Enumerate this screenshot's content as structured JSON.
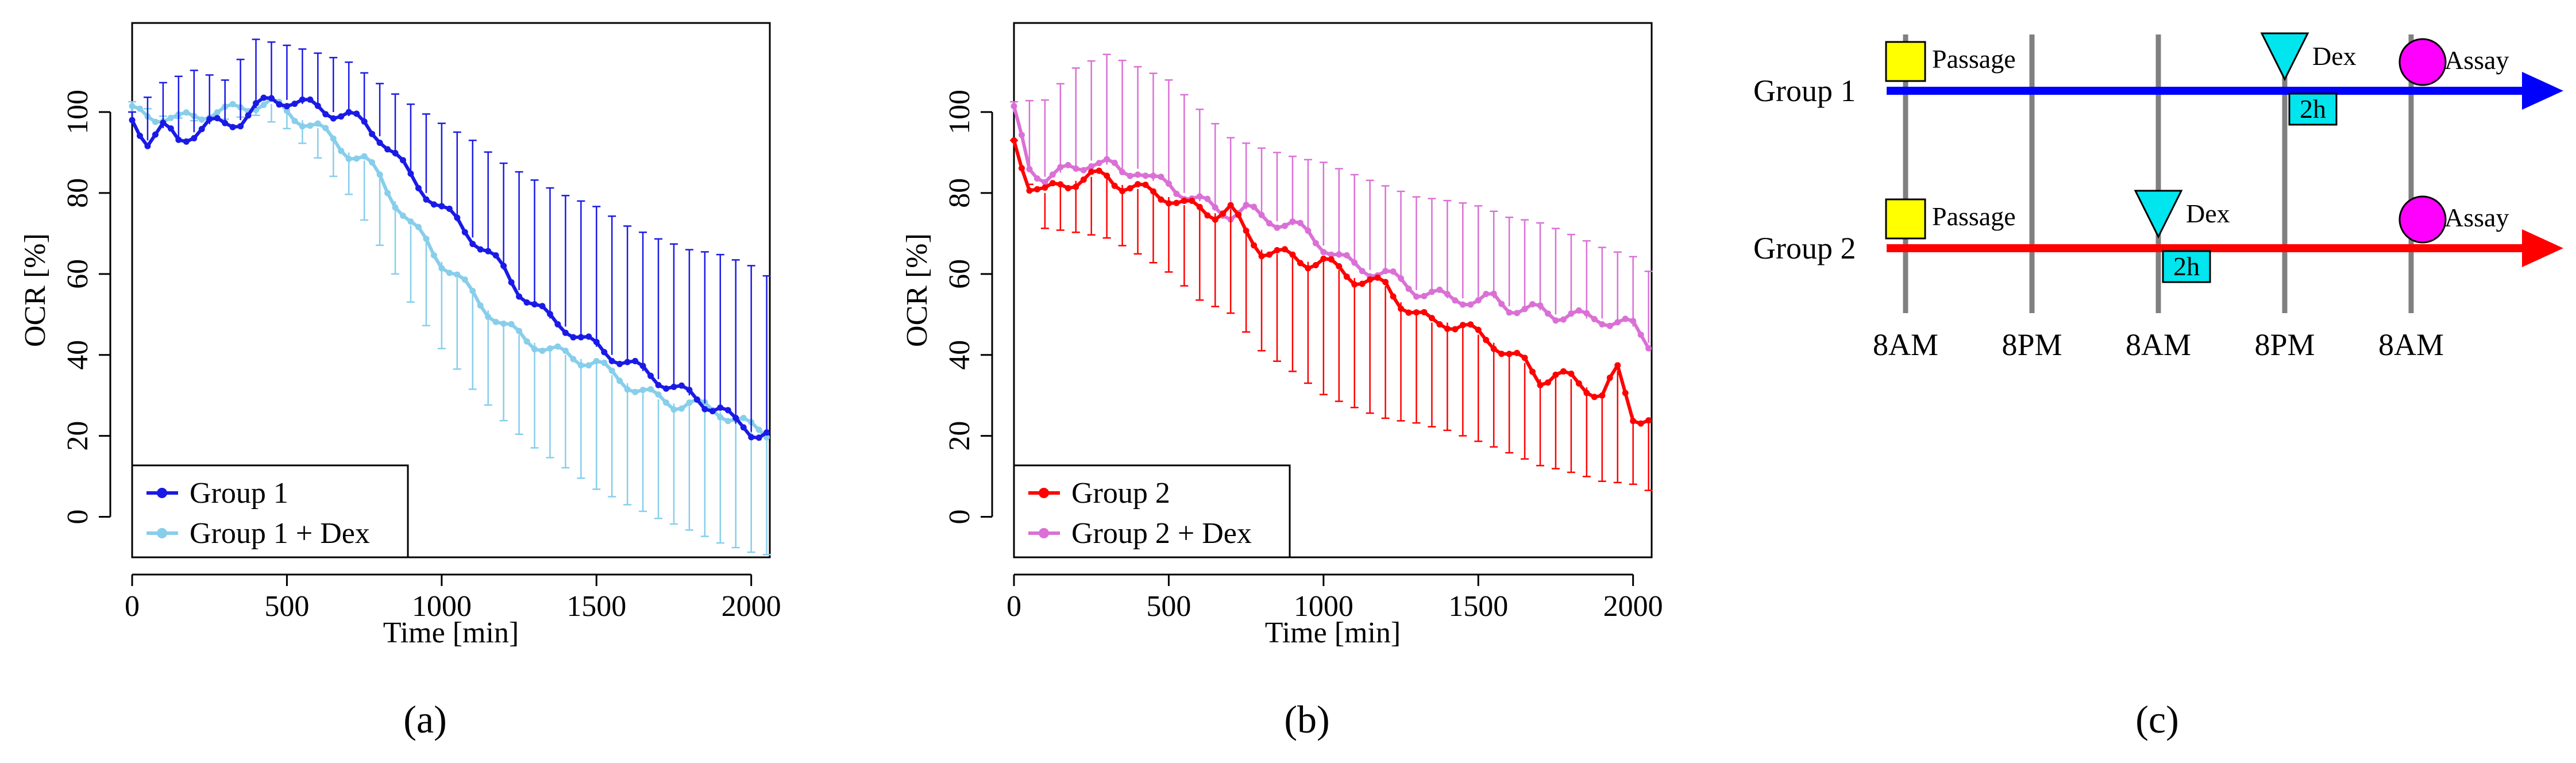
{
  "colors": {
    "group1": "#1a1ae6",
    "group1_dex": "#87ceeb",
    "group2": "#ff0000",
    "group2_dex": "#da70d6",
    "passage": "#ffff00",
    "dex": "#00e5ee",
    "assay": "#ff00ff",
    "timeline_g1": "#0000ff",
    "timeline_g2": "#ff0000",
    "gridline": "#808080"
  },
  "panel_labels": {
    "a": "(a)",
    "b": "(b)",
    "c": "(c)"
  },
  "chart_data": [
    {
      "id": "a",
      "type": "line",
      "title": "",
      "xlabel": "Time [min]",
      "ylabel": "OCR [%]",
      "xlim": [
        0,
        2060
      ],
      "ylim": [
        -10,
        122
      ],
      "xticks": [
        0,
        500,
        1000,
        1500,
        2000
      ],
      "yticks": [
        0,
        20,
        40,
        60,
        80,
        100
      ],
      "legend_position": "bottom-left",
      "series": [
        {
          "name": "Group 1",
          "color_key": "group1",
          "points": [
            [
              0,
              98
            ],
            [
              50,
              93
            ],
            [
              100,
              96
            ],
            [
              150,
              93
            ],
            [
              200,
              95
            ],
            [
              250,
              97
            ],
            [
              300,
              97
            ],
            [
              350,
              98
            ],
            [
              400,
              101
            ],
            [
              450,
              103
            ],
            [
              500,
              103
            ],
            [
              550,
              102
            ],
            [
              600,
              101
            ],
            [
              650,
              100
            ],
            [
              700,
              99
            ],
            [
              750,
              97
            ],
            [
              800,
              94
            ],
            [
              850,
              89
            ],
            [
              900,
              84
            ],
            [
              950,
              80
            ],
            [
              1000,
              76
            ],
            [
              1050,
              73
            ],
            [
              1100,
              69
            ],
            [
              1150,
              65
            ],
            [
              1200,
              61
            ],
            [
              1250,
              56
            ],
            [
              1300,
              52
            ],
            [
              1350,
              49
            ],
            [
              1400,
              47
            ],
            [
              1450,
              44
            ],
            [
              1500,
              42
            ],
            [
              1550,
              40
            ],
            [
              1600,
              38
            ],
            [
              1650,
              36
            ],
            [
              1700,
              34
            ],
            [
              1750,
              32
            ],
            [
              1800,
              30
            ],
            [
              1850,
              28
            ],
            [
              1900,
              27
            ],
            [
              1950,
              23
            ],
            [
              2000,
              21
            ],
            [
              2050,
              21
            ]
          ],
          "error_upper": [
            [
              0,
              100
            ],
            [
              100,
              106
            ],
            [
              200,
              108
            ],
            [
              300,
              105
            ],
            [
              400,
              115
            ],
            [
              500,
              114
            ],
            [
              600,
              113
            ],
            [
              700,
              112
            ],
            [
              800,
              108
            ],
            [
              900,
              104
            ],
            [
              1000,
              100
            ],
            [
              1100,
              96
            ],
            [
              1200,
              90
            ],
            [
              1300,
              85
            ],
            [
              1400,
              80
            ],
            [
              1500,
              76
            ],
            [
              1600,
              70
            ],
            [
              1700,
              66
            ],
            [
              1800,
              63
            ],
            [
              1900,
              62
            ],
            [
              2000,
              60
            ],
            [
              2050,
              58
            ]
          ]
        },
        {
          "name": "Group 1 + Dex",
          "color_key": "group1_dex",
          "points": [
            [
              0,
              100
            ],
            [
              50,
              99
            ],
            [
              100,
              99
            ],
            [
              150,
              98
            ],
            [
              200,
              99
            ],
            [
              250,
              100
            ],
            [
              300,
              100
            ],
            [
              350,
              101
            ],
            [
              400,
              102
            ],
            [
              450,
              102
            ],
            [
              500,
              100
            ],
            [
              550,
              98
            ],
            [
              600,
              96
            ],
            [
              650,
              93
            ],
            [
              700,
              90
            ],
            [
              750,
              88
            ],
            [
              800,
              84
            ],
            [
              850,
              78
            ],
            [
              900,
              72
            ],
            [
              950,
              68
            ],
            [
              1000,
              63
            ],
            [
              1050,
              59
            ],
            [
              1100,
              55
            ],
            [
              1150,
              51
            ],
            [
              1200,
              47
            ],
            [
              1250,
              45
            ],
            [
              1300,
              43
            ],
            [
              1350,
              41
            ],
            [
              1400,
              40
            ],
            [
              1450,
              39
            ],
            [
              1500,
              38
            ],
            [
              1550,
              35
            ],
            [
              1600,
              33
            ],
            [
              1650,
              31
            ],
            [
              1700,
              29
            ],
            [
              1750,
              28
            ],
            [
              1800,
              28
            ],
            [
              1850,
              27
            ],
            [
              1900,
              26
            ],
            [
              1950,
              24
            ],
            [
              2000,
              22
            ],
            [
              2050,
              21
            ]
          ],
          "error_lower": [
            [
              0,
              100
            ],
            [
              100,
              96
            ],
            [
              200,
              95
            ],
            [
              300,
              96
            ],
            [
              400,
              98
            ],
            [
              500,
              96
            ],
            [
              600,
              90
            ],
            [
              700,
              82
            ],
            [
              800,
              70
            ],
            [
              900,
              56
            ],
            [
              1000,
              44
            ],
            [
              1100,
              33
            ],
            [
              1200,
              24
            ],
            [
              1300,
              16
            ],
            [
              1400,
              10
            ],
            [
              1500,
              4
            ],
            [
              1600,
              0
            ],
            [
              1700,
              -3
            ],
            [
              1800,
              -5
            ],
            [
              1900,
              -7
            ],
            [
              2000,
              -8
            ],
            [
              2050,
              -8
            ]
          ]
        }
      ]
    },
    {
      "id": "b",
      "type": "line",
      "title": "",
      "xlabel": "Time [min]",
      "ylabel": "OCR [%]",
      "xlim": [
        0,
        2060
      ],
      "ylim": [
        -10,
        122
      ],
      "xticks": [
        0,
        500,
        1000,
        1500,
        2000
      ],
      "yticks": [
        0,
        20,
        40,
        60,
        80,
        100
      ],
      "legend_position": "bottom-left",
      "series": [
        {
          "name": "Group 2",
          "color_key": "group2",
          "points": [
            [
              0,
              93
            ],
            [
              50,
              82
            ],
            [
              100,
              80
            ],
            [
              150,
              82
            ],
            [
              200,
              83
            ],
            [
              250,
              84
            ],
            [
              300,
              84
            ],
            [
              350,
              82
            ],
            [
              400,
              81
            ],
            [
              450,
              80
            ],
            [
              500,
              79
            ],
            [
              550,
              77
            ],
            [
              600,
              76
            ],
            [
              650,
              75
            ],
            [
              700,
              76
            ],
            [
              750,
              70
            ],
            [
              800,
              66
            ],
            [
              850,
              65
            ],
            [
              900,
              64
            ],
            [
              950,
              63
            ],
            [
              1000,
              63
            ],
            [
              1050,
              61
            ],
            [
              1100,
              59
            ],
            [
              1150,
              58
            ],
            [
              1200,
              57
            ],
            [
              1250,
              53
            ],
            [
              1300,
              50
            ],
            [
              1350,
              48
            ],
            [
              1400,
              48
            ],
            [
              1450,
              47
            ],
            [
              1500,
              45
            ],
            [
              1550,
              43
            ],
            [
              1600,
              40
            ],
            [
              1650,
              38
            ],
            [
              1700,
              34
            ],
            [
              1750,
              35
            ],
            [
              1800,
              34
            ],
            [
              1850,
              32
            ],
            [
              1900,
              30
            ],
            [
              1950,
              36
            ],
            [
              2000,
              25
            ],
            [
              2050,
              24
            ]
          ],
          "error_lower": [
            [
              0,
              93
            ],
            [
              100,
              70
            ],
            [
              200,
              68
            ],
            [
              300,
              66
            ],
            [
              400,
              62
            ],
            [
              500,
              58
            ],
            [
              600,
              52
            ],
            [
              700,
              50
            ],
            [
              800,
              42
            ],
            [
              900,
              38
            ],
            [
              1000,
              33
            ],
            [
              1100,
              30
            ],
            [
              1200,
              27
            ],
            [
              1300,
              25
            ],
            [
              1400,
              22
            ],
            [
              1500,
              18
            ],
            [
              1600,
              14
            ],
            [
              1700,
              10
            ],
            [
              1800,
              8
            ],
            [
              1900,
              6
            ],
            [
              2000,
              6
            ],
            [
              2050,
              5
            ]
          ]
        },
        {
          "name": "Group 2 + Dex",
          "color_key": "group2_dex",
          "points": [
            [
              0,
              100
            ],
            [
              50,
              86
            ],
            [
              100,
              84
            ],
            [
              150,
              85
            ],
            [
              200,
              86
            ],
            [
              250,
              88
            ],
            [
              300,
              87
            ],
            [
              350,
              85
            ],
            [
              400,
              86
            ],
            [
              450,
              83
            ],
            [
              500,
              82
            ],
            [
              550,
              80
            ],
            [
              600,
              78
            ],
            [
              650,
              76
            ],
            [
              700,
              75
            ],
            [
              750,
              76
            ],
            [
              800,
              74
            ],
            [
              850,
              73
            ],
            [
              900,
              72
            ],
            [
              950,
              70
            ],
            [
              1000,
              67
            ],
            [
              1050,
              64
            ],
            [
              1100,
              62
            ],
            [
              1150,
              61
            ],
            [
              1200,
              60
            ],
            [
              1250,
              58
            ],
            [
              1300,
              56
            ],
            [
              1350,
              55
            ],
            [
              1400,
              54
            ],
            [
              1450,
              54
            ],
            [
              1500,
              53
            ],
            [
              1550,
              54
            ],
            [
              1600,
              52
            ],
            [
              1650,
              51
            ],
            [
              1700,
              51
            ],
            [
              1750,
              50
            ],
            [
              1800,
              50
            ],
            [
              1850,
              49
            ],
            [
              1900,
              49
            ],
            [
              1950,
              48
            ],
            [
              2000,
              47
            ],
            [
              2050,
              43
            ]
          ],
          "error_upper": [
            [
              0,
              100
            ],
            [
              100,
              100
            ],
            [
              200,
              108
            ],
            [
              300,
              112
            ],
            [
              400,
              110
            ],
            [
              500,
              108
            ],
            [
              600,
              102
            ],
            [
              700,
              96
            ],
            [
              800,
              94
            ],
            [
              900,
              92
            ],
            [
              1000,
              90
            ],
            [
              1100,
              86
            ],
            [
              1200,
              82
            ],
            [
              1300,
              78
            ],
            [
              1400,
              76
            ],
            [
              1500,
              74
            ],
            [
              1600,
              71
            ],
            [
              1700,
              70
            ],
            [
              1800,
              68
            ],
            [
              1900,
              66
            ],
            [
              2000,
              65
            ],
            [
              2050,
              62
            ]
          ]
        }
      ]
    },
    {
      "id": "c",
      "type": "timeline",
      "x_axis_labels": [
        "8AM",
        "8PM",
        "8AM",
        "8PM",
        "8AM"
      ],
      "rows": [
        {
          "label": "Group 1",
          "color_key": "timeline_g1",
          "events": [
            {
              "type": "square",
              "text": "Passage",
              "at": 0
            },
            {
              "type": "triangle",
              "text": "Dex",
              "at": 3,
              "duration": "2h"
            },
            {
              "type": "circle",
              "text": "Assay",
              "at": 4
            }
          ]
        },
        {
          "label": "Group 2",
          "color_key": "timeline_g2",
          "events": [
            {
              "type": "square",
              "text": "Passage",
              "at": 0
            },
            {
              "type": "triangle",
              "text": "Dex",
              "at": 2,
              "duration": "2h"
            },
            {
              "type": "circle",
              "text": "Assay",
              "at": 4
            }
          ]
        }
      ]
    }
  ]
}
